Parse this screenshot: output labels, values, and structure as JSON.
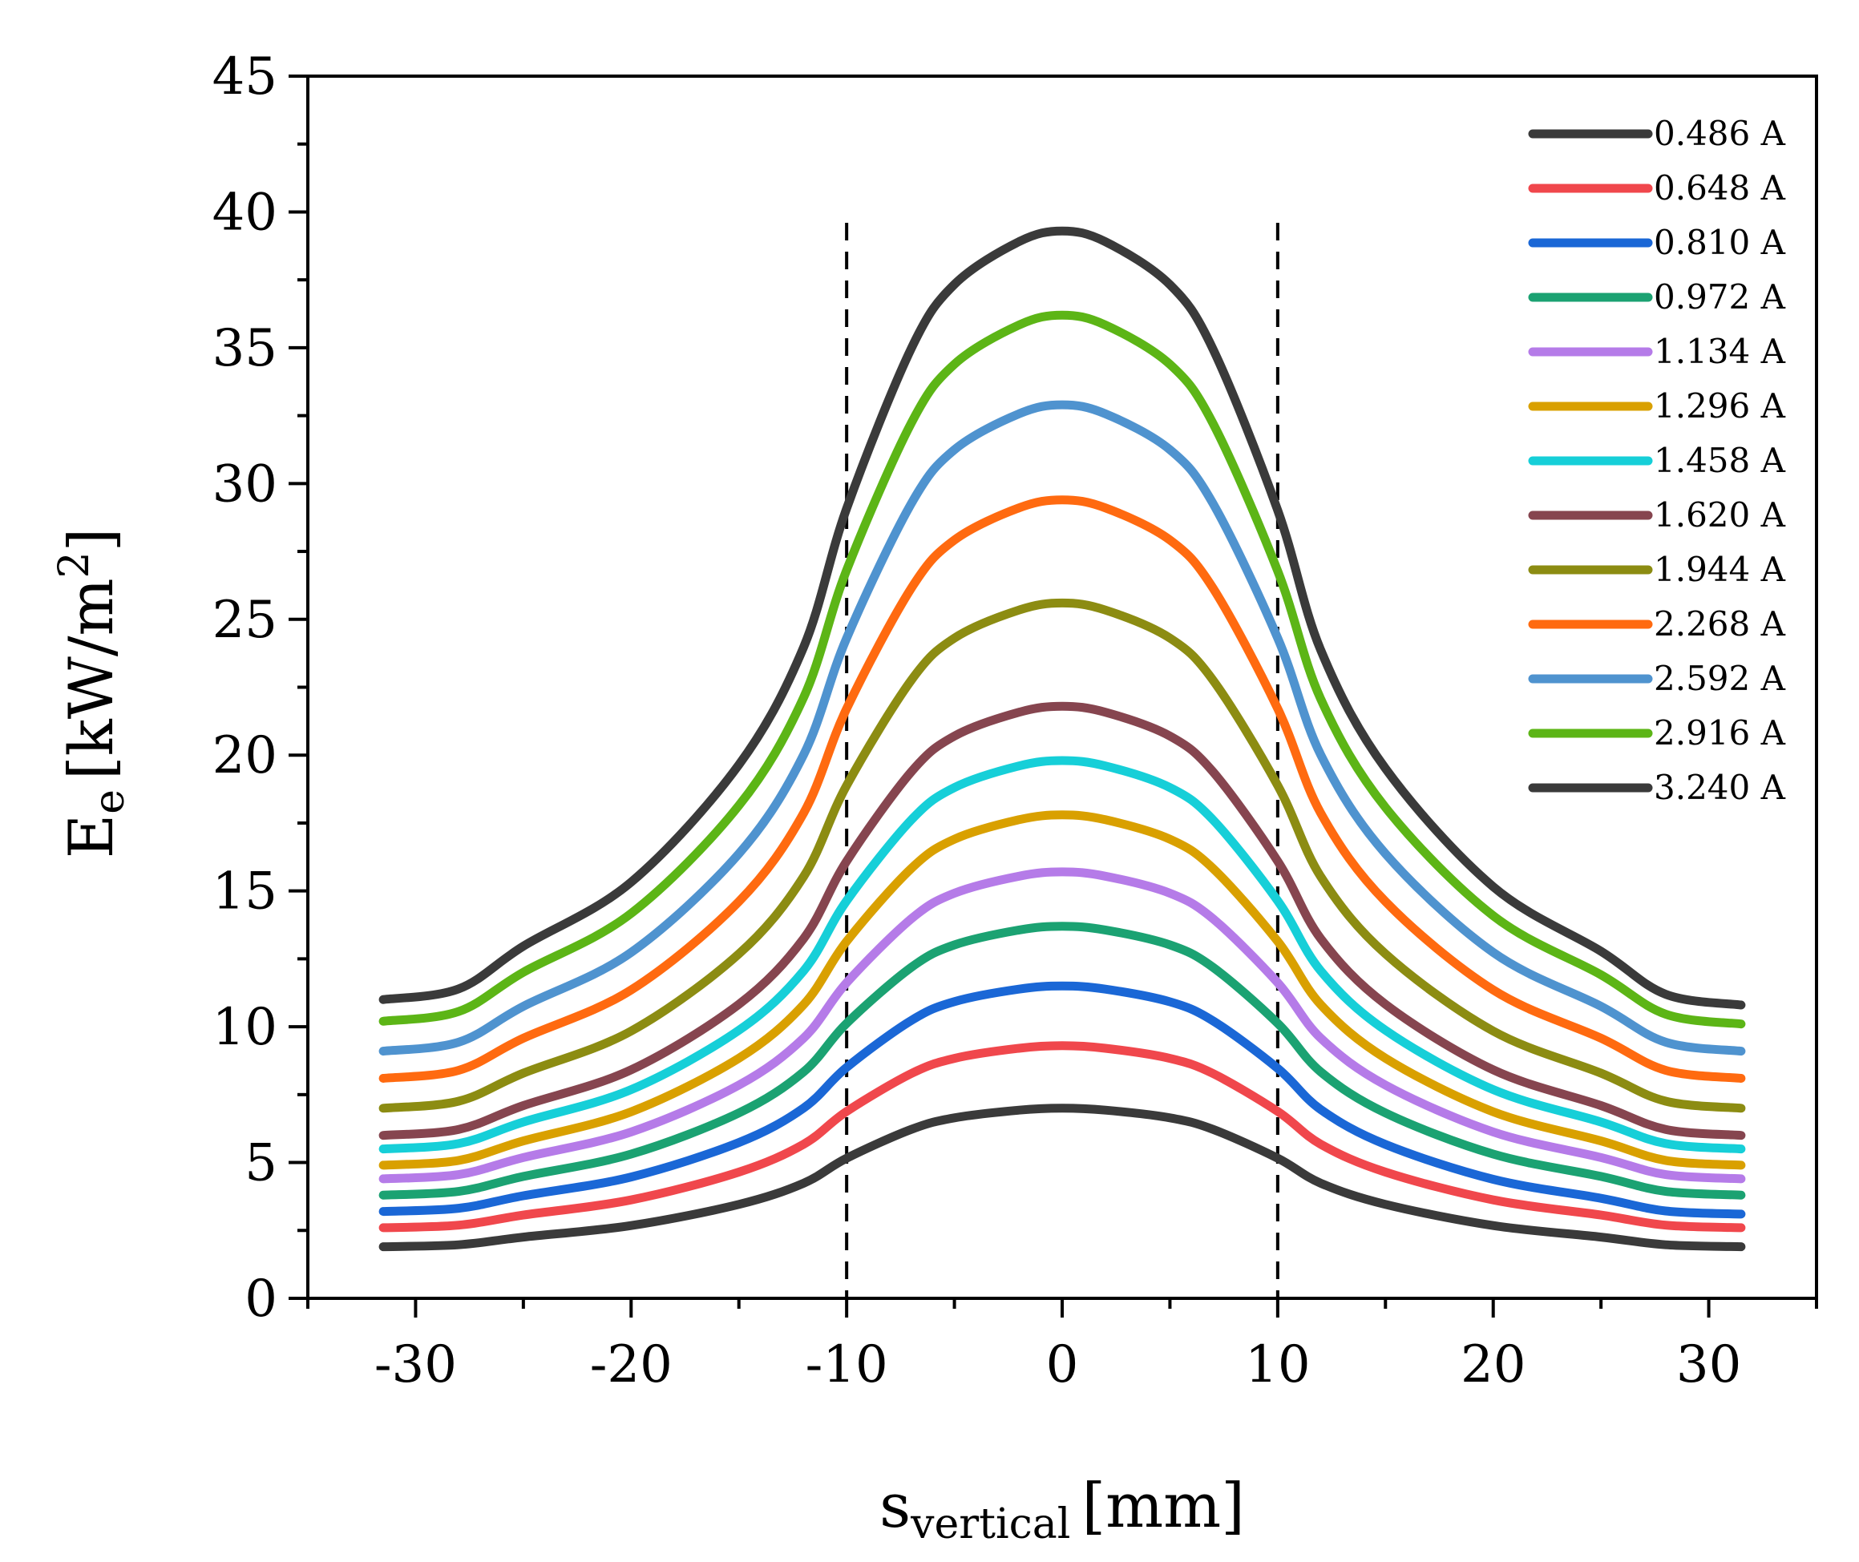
{
  "chart_data": {
    "type": "line",
    "xlabel_main": "s",
    "xlabel_sub": "vertical",
    "xlabel_unit": "[mm]",
    "ylabel_main": "E",
    "ylabel_sub": "e",
    "ylabel_unit": "[kW/m",
    "ylabel_sup": "2",
    "ylabel_close": "]",
    "xlim": [
      -35,
      35
    ],
    "ylim": [
      0,
      45
    ],
    "xticks": [
      -30,
      -20,
      -10,
      0,
      10,
      20,
      30
    ],
    "xtick_labels": [
      "-30",
      "-20",
      "-10",
      "0",
      "10",
      "20",
      "30"
    ],
    "yticks": [
      0,
      5,
      10,
      15,
      20,
      25,
      30,
      35,
      40,
      45
    ],
    "ytick_labels": [
      "0",
      "5",
      "10",
      "15",
      "20",
      "25",
      "30",
      "35",
      "40",
      "45"
    ],
    "reference_lines_x": [
      -10,
      10
    ],
    "legend_position": "top-right",
    "x": [
      -31.5,
      -28,
      -25,
      -20,
      -15,
      -12,
      -10,
      -7,
      -5,
      -2,
      0,
      2,
      5,
      7,
      10,
      12,
      15,
      20,
      25,
      28,
      31.5
    ],
    "series": [
      {
        "name": "0.486 A",
        "color": "#3a3a3a",
        "peak": 7.0,
        "edge_left": 1.9,
        "edge_right": 1.9
      },
      {
        "name": "0.648 A",
        "color": "#f0474c",
        "peak": 9.3,
        "edge_left": 2.6,
        "edge_right": 2.6
      },
      {
        "name": "0.810 A",
        "color": "#1a67d6",
        "peak": 11.5,
        "edge_left": 3.2,
        "edge_right": 3.1
      },
      {
        "name": "0.972 A",
        "color": "#1ba272",
        "peak": 13.7,
        "edge_left": 3.8,
        "edge_right": 3.8
      },
      {
        "name": "1.134 A",
        "color": "#b57be8",
        "peak": 15.7,
        "edge_left": 4.4,
        "edge_right": 4.4
      },
      {
        "name": "1.296 A",
        "color": "#d9a000",
        "peak": 17.8,
        "edge_left": 4.9,
        "edge_right": 4.9
      },
      {
        "name": "1.458 A",
        "color": "#16cfd8",
        "peak": 19.8,
        "edge_left": 5.5,
        "edge_right": 5.5
      },
      {
        "name": "1.620 A",
        "color": "#86454f",
        "peak": 21.8,
        "edge_left": 6.0,
        "edge_right": 6.0
      },
      {
        "name": "1.944 A",
        "color": "#8c8c12",
        "peak": 25.6,
        "edge_left": 7.0,
        "edge_right": 7.0
      },
      {
        "name": "2.268 A",
        "color": "#ff6a10",
        "peak": 29.4,
        "edge_left": 8.1,
        "edge_right": 8.1
      },
      {
        "name": "2.592 A",
        "color": "#4f93cf",
        "peak": 32.9,
        "edge_left": 9.1,
        "edge_right": 9.1
      },
      {
        "name": "2.916 A",
        "color": "#5cb516",
        "peak": 36.2,
        "edge_left": 10.2,
        "edge_right": 10.1
      },
      {
        "name": "3.240 A",
        "color": "#3a3a3a",
        "peak": 39.3,
        "edge_left": 11.0,
        "edge_right": 10.8
      }
    ],
    "shape_profile": [
      0.28,
      0.29,
      0.33,
      0.39,
      0.5,
      0.61,
      0.74,
      0.89,
      0.95,
      0.99,
      1.0,
      0.99,
      0.95,
      0.89,
      0.74,
      0.61,
      0.5,
      0.39,
      0.33,
      0.29,
      0.28
    ]
  }
}
